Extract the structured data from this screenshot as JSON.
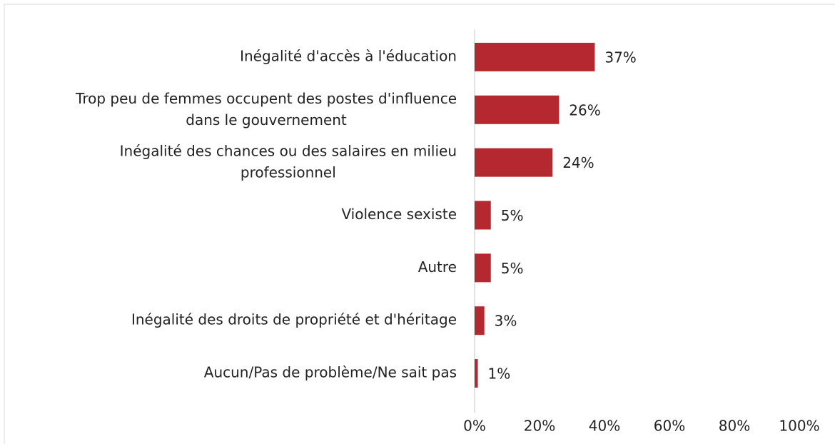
{
  "chart_data": {
    "type": "barh",
    "categories": [
      "Inégalité d'accès à l'éducation",
      "Trop peu de femmes occupent des postes d'influence dans le gouvernement",
      "Inégalité des chances ou des salaires en milieu professionnel",
      "Violence sexiste",
      "Autre",
      "Inégalité des droits de propriété et d'héritage",
      "Aucun/Pas de problème/Ne sait pas"
    ],
    "values": [
      37,
      26,
      24,
      5,
      5,
      3,
      1
    ],
    "value_labels": [
      "37%",
      "26%",
      "24%",
      "5%",
      "5%",
      "3%",
      "1%"
    ],
    "color": "#b5282f",
    "xlim": [
      0,
      100
    ],
    "xticks": [
      {
        "value": 0,
        "label": "0%"
      },
      {
        "value": 20,
        "label": "20%"
      },
      {
        "value": 40,
        "label": "40%"
      },
      {
        "value": 60,
        "label": "60%"
      },
      {
        "value": 80,
        "label": "80%"
      },
      {
        "value": 100,
        "label": "100%"
      }
    ],
    "grid": false
  }
}
